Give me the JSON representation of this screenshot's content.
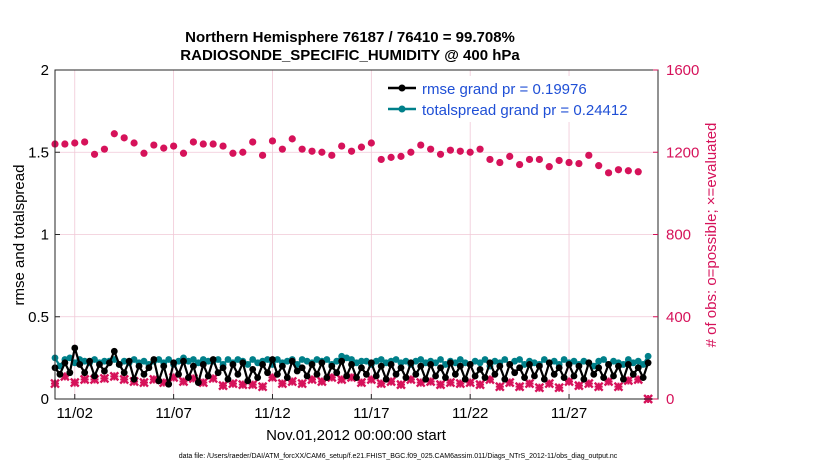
{
  "chart_data": {
    "type": "line",
    "title_line1": "Northern Hemisphere 76187 / 76410 = 99.708%",
    "title_line2": "RADIOSONDE_SPECIFIC_HUMIDITY @ 400 hPa",
    "xlabel": "Nov.01,2012 00:00:00 start",
    "ylabel_left": "rmse and totalspread",
    "ylabel_right": "# of obs: o=possible; ×=evaluated",
    "ylim_left": [
      0,
      2
    ],
    "ylim_right": [
      0,
      1600
    ],
    "xlim": [
      0.0,
      30.5
    ],
    "left_ticks": [
      "0",
      "0.5",
      "1",
      "1.5",
      "2"
    ],
    "left_tick_values": [
      0,
      0.5,
      1,
      1.5,
      2
    ],
    "right_ticks": [
      "0",
      "400",
      "800",
      "1200",
      "1600"
    ],
    "right_tick_values": [
      0,
      400,
      800,
      1200,
      1600
    ],
    "x_ticks": [
      "11/02",
      "11/07",
      "11/12",
      "11/17",
      "11/22",
      "11/27"
    ],
    "x_tick_values": [
      1,
      6,
      11,
      16,
      21,
      26
    ],
    "grid": true,
    "legend_position": "top-right",
    "footer": "data file: /Users/raeder/DAI/ATM_forcXX/CAM6_setup/f.e21.FHIST_BGC.f09_025.CAM6assim.011/Diags_NTrS_2012-11/obs_diag_output.nc",
    "colors": {
      "rmse": "#000000",
      "spread": "#00808a",
      "obs": "#d6125a",
      "legend_text": "#1f4fd6"
    },
    "series": [
      {
        "name": "rmse grand pr = 0.19976",
        "legend_label": "rmse grand pr = 0.19976",
        "axis": "left",
        "x": [
          0.0,
          0.25,
          0.5,
          0.75,
          1.0,
          1.25,
          1.5,
          1.75,
          2.0,
          2.25,
          2.5,
          2.75,
          3.0,
          3.25,
          3.5,
          3.75,
          4.0,
          4.25,
          4.5,
          4.75,
          5.0,
          5.25,
          5.5,
          5.75,
          6.0,
          6.25,
          6.5,
          6.75,
          7.0,
          7.25,
          7.5,
          7.75,
          8.0,
          8.25,
          8.5,
          8.75,
          9.0,
          9.25,
          9.5,
          9.75,
          10.0,
          10.25,
          10.5,
          10.75,
          11.0,
          11.25,
          11.5,
          11.75,
          12.0,
          12.25,
          12.5,
          12.75,
          13.0,
          13.25,
          13.5,
          13.75,
          14.0,
          14.25,
          14.5,
          14.75,
          15.0,
          15.25,
          15.5,
          15.75,
          16.0,
          16.25,
          16.5,
          16.75,
          17.0,
          17.25,
          17.5,
          17.75,
          18.0,
          18.25,
          18.5,
          18.75,
          19.0,
          19.25,
          19.5,
          19.75,
          20.0,
          20.25,
          20.5,
          20.75,
          21.0,
          21.25,
          21.5,
          21.75,
          22.0,
          22.25,
          22.5,
          22.75,
          23.0,
          23.25,
          23.5,
          23.75,
          24.0,
          24.25,
          24.5,
          24.75,
          25.0,
          25.25,
          25.5,
          25.75,
          26.0,
          26.25,
          26.5,
          26.75,
          27.0,
          27.25,
          27.5,
          27.75,
          28.0,
          28.25,
          28.5,
          28.75,
          29.0,
          29.25,
          29.5,
          29.75,
          30.0
        ],
        "values": [
          0.19,
          0.15,
          0.22,
          0.16,
          0.31,
          0.21,
          0.16,
          0.23,
          0.14,
          0.21,
          0.17,
          0.22,
          0.29,
          0.21,
          0.16,
          0.23,
          0.12,
          0.2,
          0.15,
          0.19,
          0.24,
          0.11,
          0.2,
          0.09,
          0.22,
          0.15,
          0.23,
          0.13,
          0.2,
          0.1,
          0.21,
          0.14,
          0.24,
          0.16,
          0.19,
          0.12,
          0.21,
          0.15,
          0.22,
          0.11,
          0.18,
          0.13,
          0.21,
          0.16,
          0.24,
          0.15,
          0.2,
          0.13,
          0.23,
          0.17,
          0.19,
          0.14,
          0.21,
          0.15,
          0.22,
          0.13,
          0.2,
          0.16,
          0.23,
          0.14,
          0.21,
          0.13,
          0.19,
          0.15,
          0.22,
          0.14,
          0.2,
          0.12,
          0.21,
          0.15,
          0.19,
          0.13,
          0.22,
          0.15,
          0.2,
          0.12,
          0.21,
          0.14,
          0.19,
          0.13,
          0.22,
          0.15,
          0.2,
          0.12,
          0.21,
          0.14,
          0.18,
          0.13,
          0.22,
          0.15,
          0.2,
          0.12,
          0.21,
          0.16,
          0.19,
          0.13,
          0.21,
          0.14,
          0.2,
          0.12,
          0.22,
          0.15,
          0.19,
          0.13,
          0.21,
          0.14,
          0.2,
          0.12,
          0.22,
          0.15,
          0.19,
          0.13,
          0.21,
          0.14,
          0.2,
          0.12,
          0.21,
          0.15,
          0.19,
          0.13,
          0.22
        ]
      },
      {
        "name": "totalspread grand pr = 0.24412",
        "legend_label": "totalspread grand pr = 0.24412",
        "axis": "left",
        "x": [
          0.0,
          0.25,
          0.5,
          0.75,
          1.0,
          1.25,
          1.5,
          1.75,
          2.0,
          2.25,
          2.5,
          2.75,
          3.0,
          3.25,
          3.5,
          3.75,
          4.0,
          4.25,
          4.5,
          4.75,
          5.0,
          5.25,
          5.5,
          5.75,
          6.0,
          6.25,
          6.5,
          6.75,
          7.0,
          7.25,
          7.5,
          7.75,
          8.0,
          8.25,
          8.5,
          8.75,
          9.0,
          9.25,
          9.5,
          9.75,
          10.0,
          10.25,
          10.5,
          10.75,
          11.0,
          11.25,
          11.5,
          11.75,
          12.0,
          12.25,
          12.5,
          12.75,
          13.0,
          13.25,
          13.5,
          13.75,
          14.0,
          14.25,
          14.5,
          14.75,
          15.0,
          15.25,
          15.5,
          15.75,
          16.0,
          16.25,
          16.5,
          16.75,
          17.0,
          17.25,
          17.5,
          17.75,
          18.0,
          18.25,
          18.5,
          18.75,
          19.0,
          19.25,
          19.5,
          19.75,
          20.0,
          20.25,
          20.5,
          20.75,
          21.0,
          21.25,
          21.5,
          21.75,
          22.0,
          22.25,
          22.5,
          22.75,
          23.0,
          23.25,
          23.5,
          23.75,
          24.0,
          24.25,
          24.5,
          24.75,
          25.0,
          25.25,
          25.5,
          25.75,
          26.0,
          26.25,
          26.5,
          26.75,
          27.0,
          27.25,
          27.5,
          27.75,
          28.0,
          28.25,
          28.5,
          28.75,
          29.0,
          29.25,
          29.5,
          29.75,
          30.0
        ],
        "values": [
          0.25,
          0.2,
          0.24,
          0.25,
          0.22,
          0.24,
          0.23,
          0.22,
          0.24,
          0.22,
          0.23,
          0.23,
          0.24,
          0.21,
          0.23,
          0.22,
          0.24,
          0.22,
          0.23,
          0.21,
          0.23,
          0.24,
          0.22,
          0.24,
          0.21,
          0.23,
          0.25,
          0.23,
          0.24,
          0.22,
          0.24,
          0.23,
          0.23,
          0.24,
          0.21,
          0.24,
          0.22,
          0.24,
          0.23,
          0.21,
          0.24,
          0.22,
          0.23,
          0.24,
          0.21,
          0.24,
          0.22,
          0.23,
          0.24,
          0.21,
          0.24,
          0.23,
          0.22,
          0.24,
          0.23,
          0.24,
          0.21,
          0.23,
          0.26,
          0.25,
          0.24,
          0.22,
          0.23,
          0.23,
          0.21,
          0.23,
          0.24,
          0.22,
          0.23,
          0.24,
          0.22,
          0.23,
          0.21,
          0.23,
          0.24,
          0.22,
          0.23,
          0.22,
          0.24,
          0.21,
          0.23,
          0.22,
          0.24,
          0.22,
          0.21,
          0.23,
          0.22,
          0.24,
          0.2,
          0.23,
          0.22,
          0.24,
          0.21,
          0.23,
          0.24,
          0.21,
          0.23,
          0.22,
          0.21,
          0.24,
          0.22,
          0.23,
          0.21,
          0.24,
          0.22,
          0.23,
          0.21,
          0.23,
          0.22,
          0.2,
          0.23,
          0.24,
          0.21,
          0.23,
          0.22,
          0.21,
          0.24,
          0.22,
          0.23,
          0.21,
          0.26
        ]
      }
    ],
    "obs_possible": {
      "name": "possible",
      "axis": "right",
      "marker": "o",
      "x": [
        0.0,
        0.5,
        1.0,
        1.5,
        2.0,
        2.5,
        3.0,
        3.5,
        4.0,
        4.5,
        5.0,
        5.5,
        6.0,
        6.5,
        7.0,
        7.5,
        8.0,
        8.5,
        9.0,
        9.5,
        10.0,
        10.5,
        11.0,
        11.5,
        12.0,
        12.5,
        13.0,
        13.5,
        14.0,
        14.5,
        15.0,
        15.5,
        16.0,
        16.5,
        17.0,
        17.5,
        18.0,
        18.5,
        19.0,
        19.5,
        20.0,
        20.5,
        21.0,
        21.5,
        22.0,
        22.5,
        23.0,
        23.5,
        24.0,
        24.5,
        25.0,
        25.5,
        26.0,
        26.5,
        27.0,
        27.5,
        28.0,
        28.5,
        29.0,
        29.5
      ],
      "values": [
        1240,
        1240,
        1245,
        1250,
        1190,
        1215,
        1290,
        1270,
        1245,
        1195,
        1235,
        1220,
        1230,
        1195,
        1250,
        1240,
        1240,
        1230,
        1195,
        1200,
        1250,
        1185,
        1255,
        1215,
        1265,
        1215,
        1205,
        1200,
        1185,
        1230,
        1205,
        1225,
        1245,
        1165,
        1175,
        1180,
        1200,
        1235,
        1215,
        1190,
        1210,
        1205,
        1200,
        1215,
        1165,
        1150,
        1180,
        1140,
        1165,
        1165,
        1130,
        1160,
        1150,
        1145,
        1185,
        1135,
        1100,
        1115,
        1110,
        1105
      ]
    },
    "obs_evaluated": {
      "name": "evaluated",
      "axis": "right",
      "marker": "x",
      "x": [
        0.0,
        0.5,
        1.0,
        1.5,
        2.0,
        2.5,
        3.0,
        3.5,
        4.0,
        4.5,
        5.0,
        5.5,
        6.0,
        6.5,
        7.0,
        7.5,
        8.0,
        8.5,
        9.0,
        9.5,
        10.0,
        10.5,
        11.0,
        11.5,
        12.0,
        12.5,
        13.0,
        13.5,
        14.0,
        14.5,
        15.0,
        15.5,
        16.0,
        16.5,
        17.0,
        17.5,
        18.0,
        18.5,
        19.0,
        19.5,
        20.0,
        20.5,
        21.0,
        21.5,
        22.0,
        22.5,
        23.0,
        23.5,
        24.0,
        24.5,
        25.0,
        25.5,
        26.0,
        26.5,
        27.0,
        27.5,
        28.0,
        28.5,
        29.0,
        29.5,
        30.0
      ],
      "values": [
        75,
        110,
        80,
        95,
        95,
        100,
        110,
        95,
        85,
        80,
        95,
        80,
        105,
        85,
        100,
        80,
        100,
        65,
        75,
        70,
        70,
        60,
        105,
        75,
        85,
        75,
        95,
        85,
        105,
        95,
        105,
        80,
        95,
        75,
        85,
        70,
        95,
        80,
        85,
        70,
        80,
        75,
        80,
        70,
        95,
        60,
        80,
        60,
        75,
        55,
        75,
        55,
        85,
        65,
        75,
        60,
        85,
        60,
        90,
        95,
        0
      ]
    },
    "legend": [
      {
        "label": "rmse grand pr = 0.19976"
      },
      {
        "label": "totalspread grand pr = 0.24412"
      }
    ]
  }
}
